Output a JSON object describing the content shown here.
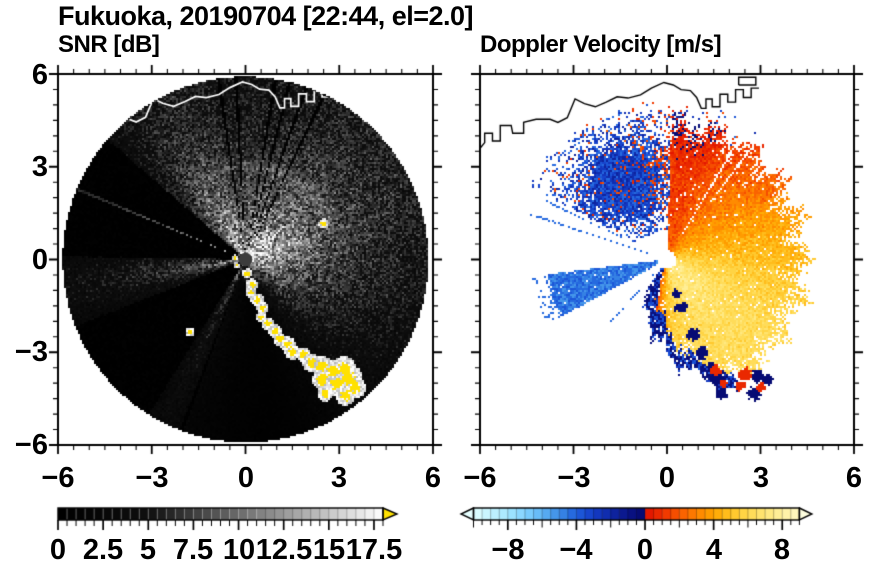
{
  "header": {
    "title": "Fukuoka, 20190704 [22:44, el=2.0]",
    "station": "Fukuoka",
    "date": "20190704",
    "time": "22:44",
    "elevation_deg": "2.0"
  },
  "panels": {
    "left_title": "SNR [dB]",
    "right_title": "Doppler Velocity [m/s]"
  },
  "axes": {
    "xtick_labels": [
      "−6",
      "−3",
      "0",
      "3",
      "6"
    ],
    "ytick_labels": [
      "6",
      "3",
      "0",
      "−3",
      "−6"
    ]
  },
  "colorbars": {
    "snr": {
      "tick_labels": [
        "0",
        "2.5",
        "5",
        "7.5",
        "10",
        "12.5",
        "15",
        "17.5"
      ]
    },
    "vel": {
      "tick_labels": [
        "−8",
        "−4",
        "0",
        "4",
        "8"
      ]
    }
  },
  "coastline": {
    "color_left_panel": "#ffffff",
    "color_right_panel": "#000000",
    "points": [
      [
        -6.05,
        3.5
      ],
      [
        -5.85,
        3.75
      ],
      [
        -5.85,
        4.05
      ],
      [
        -5.6,
        4.05
      ],
      [
        -5.6,
        3.8
      ],
      [
        -5.35,
        3.8
      ],
      [
        -5.35,
        4.3
      ],
      [
        -5.0,
        4.3
      ],
      [
        -4.95,
        4.05
      ],
      [
        -4.6,
        4.05
      ],
      [
        -4.6,
        4.4
      ],
      [
        -4.2,
        4.5
      ],
      [
        -3.75,
        4.5
      ],
      [
        -3.5,
        4.4
      ],
      [
        -3.2,
        4.55
      ],
      [
        -2.95,
        5.15
      ],
      [
        -2.65,
        5.0
      ],
      [
        -2.3,
        4.9
      ],
      [
        -1.95,
        5.05
      ],
      [
        -1.6,
        5.22
      ],
      [
        -1.25,
        5.18
      ],
      [
        -0.85,
        5.28
      ],
      [
        -0.5,
        5.5
      ],
      [
        -0.1,
        5.68
      ],
      [
        0.2,
        5.6
      ],
      [
        0.45,
        5.45
      ],
      [
        0.75,
        5.42
      ],
      [
        0.95,
        5.2
      ],
      [
        1.1,
        4.85
      ],
      [
        1.25,
        4.85
      ],
      [
        1.25,
        5.15
      ],
      [
        1.45,
        5.15
      ],
      [
        1.45,
        4.9
      ],
      [
        1.7,
        4.9
      ],
      [
        1.7,
        5.3
      ],
      [
        1.95,
        5.3
      ],
      [
        1.95,
        5.05
      ],
      [
        2.2,
        5.05
      ],
      [
        2.2,
        5.45
      ],
      [
        2.45,
        5.45
      ],
      [
        2.45,
        5.2
      ],
      [
        2.7,
        5.2
      ],
      [
        2.7,
        5.5
      ],
      [
        2.95,
        5.5
      ]
    ],
    "harbor_box": [
      [
        2.3,
        5.6
      ],
      [
        2.85,
        5.6
      ],
      [
        2.85,
        5.85
      ],
      [
        2.3,
        5.85
      ],
      [
        2.3,
        5.6
      ]
    ]
  },
  "chart_data": [
    {
      "id": "snr",
      "type": "heatmap",
      "title": "SNR [dB]",
      "xlabel": "",
      "ylabel": "",
      "xlim": [
        -6,
        6
      ],
      "ylim": [
        -6,
        6
      ],
      "xticks": [
        -6,
        -3,
        0,
        3,
        6
      ],
      "yticks": [
        -6,
        -3,
        0,
        3,
        6
      ],
      "minor_tick_step": 0.5,
      "grid": false,
      "radar": {
        "center": [
          0,
          0
        ],
        "radius": 5.85,
        "center_dot_radius": 0.22,
        "center_dot_color": "#3c3c3c"
      },
      "colorbar": {
        "min": 0,
        "max": 18,
        "major_ticks": [
          0,
          2.5,
          5,
          7.5,
          10,
          12.5,
          15,
          17.5
        ],
        "tick_labels": [
          "0",
          "2.5",
          "5",
          "7.5",
          "10",
          "12.5",
          "15",
          "17.5"
        ],
        "minor_tick_step": 0.5,
        "colormap": "near-black below 5 dB, linear grayscale 5-18 dB",
        "over_arrow_color": "#ffe100"
      },
      "features": {
        "bright_lobe": {
          "azimuth_center": 55,
          "azimuth_width": 95,
          "note": "high SNR fan from N through E"
        },
        "south_dark_notch": {
          "azimuth_center": 172,
          "azimuth_width": 26
        },
        "nw_haze": {
          "azimuth_center": 330,
          "azimuth_width": 20
        },
        "west_gray_fan": {
          "azimuth_center": 261,
          "azimuth_width": 11
        },
        "ssw_gray_fan": {
          "azimuth_center": 206,
          "azimuth_width": 5.5
        },
        "blocked_wedges_az": [
          [
            271,
            311
          ],
          [
            212,
            248.5
          ]
        ],
        "dark_thin_rays_az": [
          351.5,
          357,
          9.5,
          14,
          19.5,
          25.5,
          200.5
        ],
        "bright_ray_az": 292.7,
        "bright_streak_az": 72,
        "range_ring": {
          "radius": 2.95,
          "azimuth_center": 20,
          "azimuth_width": 45
        },
        "clutter_color": "#ffe100",
        "clutter_blobs": [
          [
            0.05,
            -0.45,
            0.1
          ],
          [
            -0.35,
            0.05,
            0.06
          ],
          [
            -0.28,
            -0.18,
            0.06
          ],
          [
            0.2,
            -0.8,
            0.12
          ],
          [
            0.15,
            -1.05,
            0.1
          ],
          [
            0.38,
            -1.3,
            0.13
          ],
          [
            0.55,
            -1.55,
            0.12
          ],
          [
            0.5,
            -1.85,
            0.1
          ],
          [
            0.72,
            -2.05,
            0.13
          ],
          [
            0.95,
            -2.3,
            0.14
          ],
          [
            1.1,
            -2.55,
            0.13
          ],
          [
            1.35,
            -2.7,
            0.15
          ],
          [
            1.5,
            -2.95,
            0.16
          ],
          [
            1.85,
            -3.05,
            0.14
          ],
          [
            2.1,
            -3.3,
            0.18
          ],
          [
            2.45,
            -3.4,
            0.2
          ],
          [
            2.8,
            -3.55,
            0.22
          ],
          [
            3.15,
            -3.5,
            0.25
          ],
          [
            3.3,
            -3.8,
            0.28
          ],
          [
            2.9,
            -4.0,
            0.22
          ],
          [
            2.45,
            -3.85,
            0.2
          ],
          [
            3.5,
            -4.1,
            0.22
          ],
          [
            3.2,
            -4.35,
            0.2
          ],
          [
            2.55,
            -4.3,
            0.15
          ],
          [
            2.5,
            1.15,
            0.1
          ],
          [
            -1.78,
            -2.32,
            0.09
          ]
        ]
      }
    },
    {
      "id": "vel",
      "type": "heatmap",
      "title": "Doppler Velocity [m/s]",
      "xlabel": "",
      "ylabel": "",
      "xlim": [
        -6,
        6
      ],
      "ylim": [
        -6,
        6
      ],
      "xticks": [
        -6,
        -3,
        0,
        3,
        6
      ],
      "yticks": [
        -6,
        -3,
        0,
        3,
        6
      ],
      "minor_tick_step": 0.5,
      "grid": false,
      "radar": {
        "center": [
          0,
          0
        ],
        "radius": 5.85,
        "center_dot_radius": 0.29,
        "center_dot_color": "#ffffff"
      },
      "colorbar": {
        "min": -10,
        "max": 9,
        "major_ticks": [
          -8,
          -4,
          0,
          4,
          8
        ],
        "tick_labels": [
          "−8",
          "−4",
          "0",
          "4",
          "8"
        ],
        "minor_tick_step": 0.5,
        "under_arrow_color": "#e6ffff",
        "over_arrow_color": "#ffffe0"
      },
      "colormap_stops": [
        [
          -10,
          "#e0ffff"
        ],
        [
          -9,
          "#c3f3ff"
        ],
        [
          -8,
          "#a5e7ff"
        ],
        [
          -7,
          "#82d2ff"
        ],
        [
          -6,
          "#5fb4f5"
        ],
        [
          -5,
          "#3c8ce6"
        ],
        [
          -4,
          "#1e5fdc"
        ],
        [
          -3,
          "#143cc8"
        ],
        [
          -2,
          "#0f28a5"
        ],
        [
          -1,
          "#0a1487"
        ],
        [
          -0.01,
          "#05086e"
        ],
        [
          0.01,
          "#e01000"
        ],
        [
          1,
          "#ee3000"
        ],
        [
          2,
          "#f85800"
        ],
        [
          3,
          "#ff8200"
        ],
        [
          4,
          "#ffa500"
        ],
        [
          5,
          "#ffc324"
        ],
        [
          6,
          "#ffd94e"
        ],
        [
          7,
          "#ffe678"
        ],
        [
          8,
          "#fff0a0"
        ],
        [
          9,
          "#fff8c4"
        ],
        [
          10,
          "#ffffe0"
        ]
      ],
      "features": {
        "outbound_fan": {
          "az_range": [
            2,
            197
          ],
          "rmax": 4.55,
          "vel_peak_azimuth": 138,
          "note": "positive (red-orange-yellow) velocities E/SE"
        },
        "inbound_region": {
          "az_range": [
            298,
            368
          ],
          "r_range": [
            0.95,
            5.0
          ],
          "note": "dark blue speckled region NW with red specks"
        },
        "inbound_wedge": {
          "az_range": [
            241.5,
            263
          ],
          "r_edge": 3.85,
          "note": "solid bright blue wedge WSW"
        },
        "thin_blue_rays": [
          [
            288.3,
            0.45,
            4.6
          ],
          [
            295.8,
            1.6,
            4.3
          ],
          [
            222,
            0.35,
            2.95
          ]
        ],
        "white_rays_az": [
          31,
          37.2
        ],
        "aliased_strip_az": [
          150,
          214
        ],
        "navy_blobs": [
          [
            1.6,
            -3.8,
            0.22
          ],
          [
            1.75,
            -4.3,
            0.18
          ],
          [
            1.45,
            -3.45,
            0.15
          ],
          [
            2.9,
            -3.75,
            0.2
          ],
          [
            3.2,
            -3.85,
            0.18
          ],
          [
            2.8,
            -4.3,
            0.2
          ],
          [
            0.45,
            -1.55,
            0.18
          ],
          [
            0.3,
            -1.1,
            0.14
          ],
          [
            0.85,
            -2.4,
            0.2
          ],
          [
            1.1,
            -3.0,
            0.2
          ]
        ],
        "red_blobs": [
          [
            1.55,
            -3.55,
            0.18
          ],
          [
            2.5,
            -3.7,
            0.22
          ],
          [
            2.35,
            -4.05,
            0.15
          ],
          [
            3.0,
            -4.1,
            0.15
          ],
          [
            1.8,
            -4.0,
            0.12
          ]
        ],
        "isolated_dash": [
          -4.45,
          4.05
        ]
      }
    }
  ]
}
